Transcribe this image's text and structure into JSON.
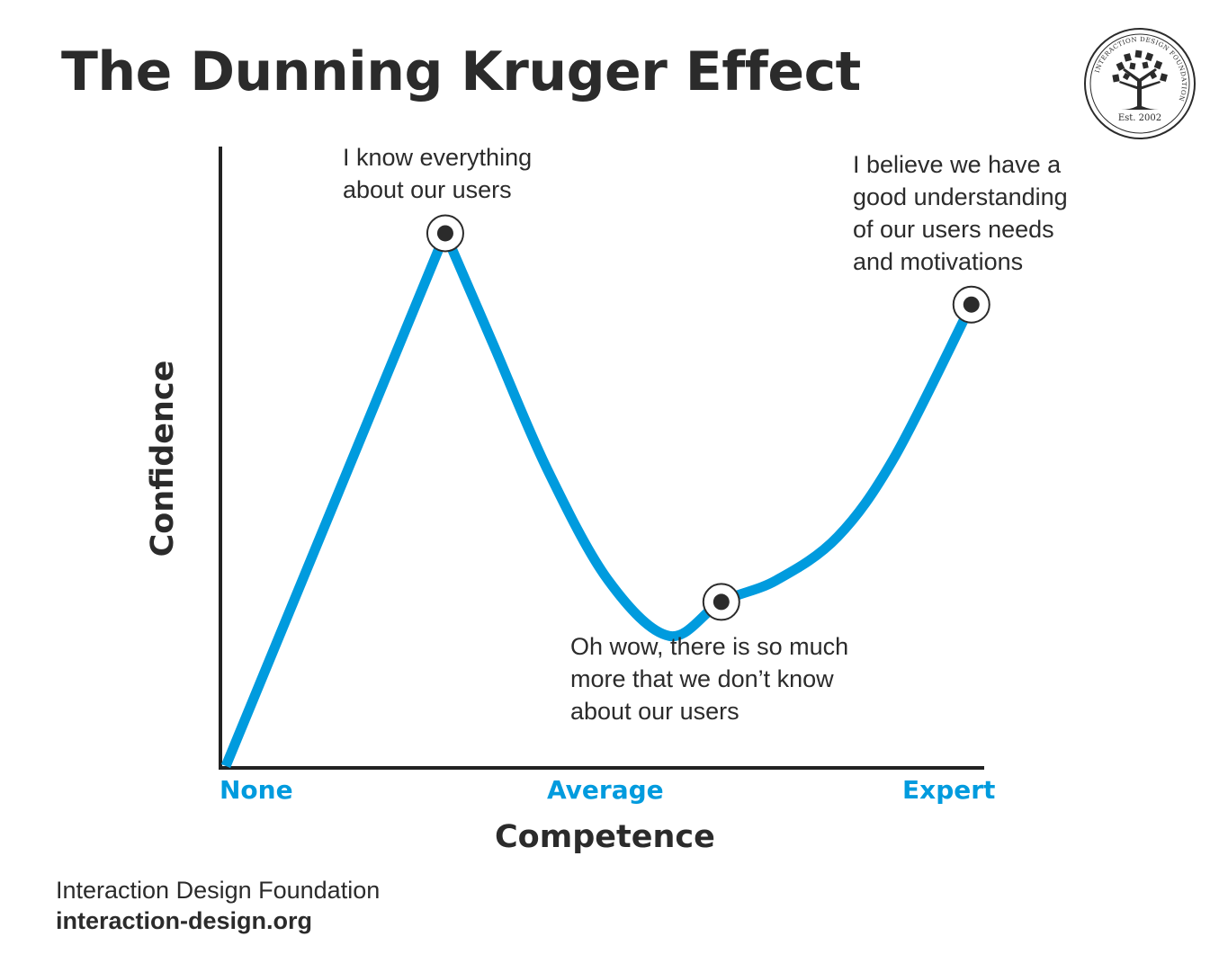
{
  "title": "The Dunning Kruger Effect",
  "logo": {
    "ring_text": "INTERACTION DESIGN FOUNDATION",
    "est": "Est. 2002"
  },
  "chart_data": {
    "type": "line",
    "xlabel": "Competence",
    "ylabel": "Confidence",
    "x_ticks": [
      "None",
      "Average",
      "Expert"
    ],
    "xlim": [
      0,
      1
    ],
    "ylim": [
      0,
      1
    ],
    "series": [
      {
        "x": [
          0,
          0.287,
          0.35,
          0.42,
          0.5,
          0.58,
          0.648,
          0.72,
          0.8,
          0.875,
          0.975
        ],
        "y": [
          0,
          0.86,
          0.68,
          0.48,
          0.3,
          0.21,
          0.265,
          0.3,
          0.37,
          0.5,
          0.745
        ]
      }
    ],
    "marked_points": [
      {
        "x": 0.287,
        "y": 0.86,
        "annotation": "I know everything about our users"
      },
      {
        "x": 0.648,
        "y": 0.265,
        "annotation": "Oh wow, there is so much more that we don’t know about our users"
      },
      {
        "x": 0.975,
        "y": 0.745,
        "annotation": "I believe we have a good understanding of our users needs and motivations"
      }
    ],
    "colors": {
      "curve": "#009bde",
      "axes": "#222222",
      "points": "#2b2b2b",
      "tick_labels": "#009bde"
    },
    "grid": false
  },
  "annotations": {
    "peak_line1": "I know everything",
    "peak_line2": "about our users",
    "valley_line1": "Oh wow, there is so much",
    "valley_line2": "more that we don’t know",
    "valley_line3": "about our users",
    "expert_line1": "I believe we have a",
    "expert_line2": "good understanding",
    "expert_line3": "of our users needs",
    "expert_line4": "and motivations"
  },
  "footer": {
    "name": "Interaction Design Foundation",
    "url": "interaction-design.org"
  }
}
